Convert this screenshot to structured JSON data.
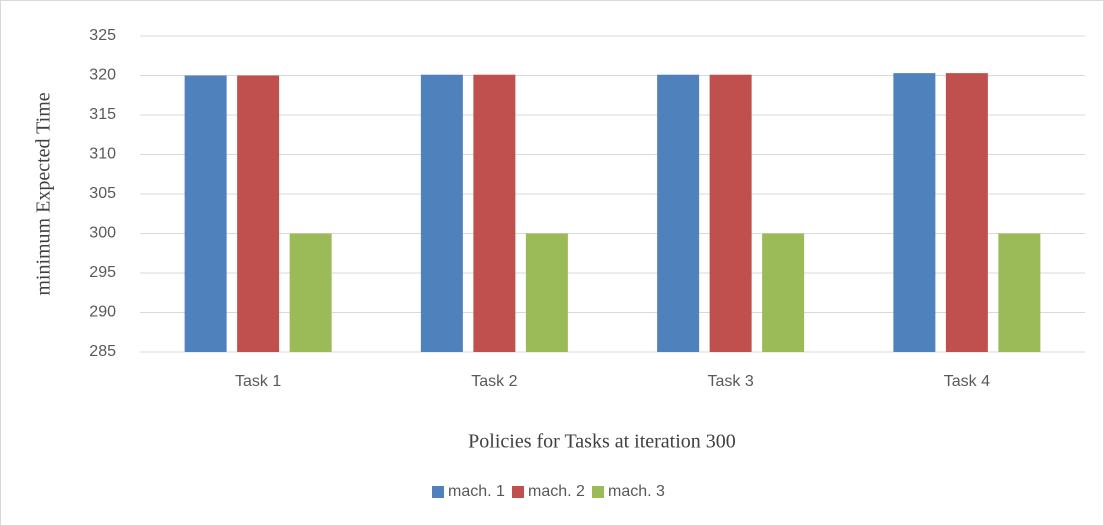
{
  "chart_data": {
    "type": "bar",
    "xlabel": "Policies for Tasks at iteration 300",
    "ylabel": "minimum Expected Time",
    "categories": [
      "Task 1",
      "Task 2",
      "Task 3",
      "Task 4"
    ],
    "series": [
      {
        "name": "mach. 1",
        "color": "#4f81bd",
        "values": [
          320,
          320.1,
          320.1,
          320.3
        ]
      },
      {
        "name": "mach. 2",
        "color": "#c0504d",
        "values": [
          320,
          320.1,
          320.1,
          320.3
        ]
      },
      {
        "name": "mach. 3",
        "color": "#9bbb59",
        "values": [
          300,
          300,
          300,
          300
        ]
      }
    ],
    "ylim": [
      285,
      325
    ],
    "yticks": [
      285,
      290,
      295,
      300,
      305,
      310,
      315,
      320,
      325
    ],
    "grid": true,
    "legend": "bottom"
  }
}
